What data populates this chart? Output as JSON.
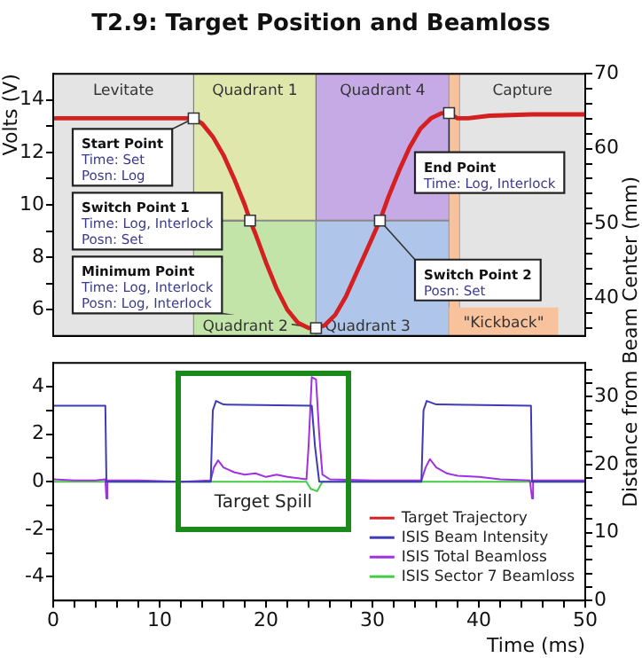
{
  "chart_data": [
    {
      "type": "line",
      "title": "T2.9: Target Position and Beamloss",
      "ylabel": "Volts (V)",
      "y2label": "Distance from Beam Center (mm)",
      "tick_labels": "y",
      "xlim": [
        0,
        50
      ],
      "ylim": [
        5,
        15
      ],
      "yticks": [
        6,
        {
          "value": 7,
          "label": null
        },
        8,
        {
          "value": 9,
          "label": null
        },
        10,
        {
          "value": 11,
          "label": null
        },
        12,
        {
          "value": 13,
          "label": null
        },
        14
      ],
      "y2lim": [
        35,
        70
      ],
      "y2ticks": [
        {
          "value": 36,
          "label": null
        },
        {
          "value": 38,
          "label": null
        },
        40,
        {
          "value": 42,
          "label": null
        },
        {
          "value": 44,
          "label": null
        },
        {
          "value": 46,
          "label": null
        },
        {
          "value": 48,
          "label": null
        },
        50,
        {
          "value": 52,
          "label": null
        },
        {
          "value": 54,
          "label": null
        },
        {
          "value": 56,
          "label": null
        },
        {
          "value": 58,
          "label": null
        },
        60,
        {
          "value": 62,
          "label": null
        },
        {
          "value": 64,
          "label": null
        },
        {
          "value": 66,
          "label": null
        },
        {
          "value": 68,
          "label": null
        },
        70
      ],
      "series": [
        {
          "name": "Target Trajectory",
          "color": "#d42020",
          "x": [
            0,
            13.2,
            14,
            15,
            16,
            17,
            18,
            18.5,
            19,
            20,
            21,
            22,
            23,
            24,
            24.7,
            25.5,
            26.5,
            27.5,
            28.5,
            29.5,
            30.7,
            31.5,
            32.5,
            33.5,
            34.5,
            35.5,
            36.5,
            37.2,
            38,
            39,
            41,
            45,
            50
          ],
          "values": [
            13.3,
            13.3,
            13.1,
            12.6,
            11.9,
            11.0,
            10.0,
            9.4,
            8.9,
            7.8,
            6.8,
            6.0,
            5.5,
            5.3,
            5.3,
            5.4,
            5.8,
            6.5,
            7.4,
            8.3,
            9.4,
            10.3,
            11.3,
            12.2,
            12.9,
            13.3,
            13.5,
            13.5,
            13.3,
            13.3,
            13.4,
            13.45,
            13.45
          ]
        }
      ],
      "ref_lines": [
        {
          "axis": "y",
          "value": 9.4,
          "color": "#888888"
        }
      ],
      "bands": [
        {
          "axis": "x",
          "from": 0,
          "to": 13.2,
          "label": "Levitate",
          "color": "#e4e4e4"
        },
        {
          "axis": "x",
          "from": 13.2,
          "to": 24.7,
          "label": "Quadrant 1",
          "color": "#dfe7ac"
        },
        {
          "axis": "x",
          "from": 13.2,
          "to": 24.7,
          "label": "Quadrant 2",
          "color": "#c3e4a8"
        },
        {
          "axis": "x",
          "from": 24.7,
          "to": 37.2,
          "label": "Quadrant 4",
          "color": "#c6aae6"
        },
        {
          "axis": "x",
          "from": 24.7,
          "to": 37.2,
          "label": "Quadrant 3",
          "color": "#afc6ea"
        },
        {
          "axis": "x",
          "from": 37.2,
          "to": 38.2,
          "label": "\"Kickback\"",
          "color": "#f8c29c"
        },
        {
          "axis": "x",
          "from": 38.2,
          "to": 50,
          "label": "Capture",
          "color": "#e4e4e4"
        }
      ],
      "annotations": [
        {
          "text": "Start Point\nTime: Set\nPosn: Log",
          "x": 13.2,
          "y": 13.3
        },
        {
          "text": "Switch Point 1\nTime: Log, Interlock\nPosn: Set",
          "x": 18.5,
          "y": 9.4
        },
        {
          "text": "Minimum Point\nTime: Log, Interlock\nPosn: Log, Interlock",
          "x": 24.7,
          "y": 5.3
        },
        {
          "text": "End Point\nTime: Log, Interlock",
          "x": 37.2,
          "y": 13.5
        },
        {
          "text": "Switch Point 2\nPosn: Set",
          "x": 30.7,
          "y": 9.4
        }
      ]
    },
    {
      "type": "line",
      "xlabel": "Time (ms)",
      "legend": "bottom right",
      "xlim": [
        0,
        50
      ],
      "xticks": [
        0,
        {
          "value": 2,
          "label": null
        },
        {
          "value": 4,
          "label": null
        },
        {
          "value": 6,
          "label": null
        },
        {
          "value": 8,
          "label": null
        },
        10,
        {
          "value": 12,
          "label": null
        },
        {
          "value": 14,
          "label": null
        },
        {
          "value": 16,
          "label": null
        },
        {
          "value": 18,
          "label": null
        },
        20,
        {
          "value": 22,
          "label": null
        },
        {
          "value": 24,
          "label": null
        },
        {
          "value": 26,
          "label": null
        },
        {
          "value": 28,
          "label": null
        },
        30,
        {
          "value": 32,
          "label": null
        },
        {
          "value": 34,
          "label": null
        },
        {
          "value": 36,
          "label": null
        },
        {
          "value": 38,
          "label": null
        },
        40,
        {
          "value": 42,
          "label": null
        },
        {
          "value": 44,
          "label": null
        },
        {
          "value": 46,
          "label": null
        },
        {
          "value": 48,
          "label": null
        },
        50
      ],
      "ylim": [
        -5,
        5
      ],
      "yticks": [
        -4,
        {
          "value": -3,
          "label": null
        },
        -2,
        {
          "value": -1,
          "label": null
        },
        0,
        {
          "value": 1,
          "label": null
        },
        2,
        {
          "value": 3,
          "label": null
        },
        4
      ],
      "y2lim": [
        0,
        35
      ],
      "y2ticks": [
        0,
        {
          "value": 2,
          "label": null
        },
        {
          "value": 4,
          "label": null
        },
        {
          "value": 6,
          "label": null
        },
        {
          "value": 8,
          "label": null
        },
        10,
        {
          "value": 12,
          "label": null
        },
        {
          "value": 14,
          "label": null
        },
        {
          "value": 16,
          "label": null
        },
        {
          "value": 18,
          "label": null
        },
        20,
        {
          "value": 22,
          "label": null
        },
        {
          "value": 24,
          "label": null
        },
        {
          "value": 26,
          "label": null
        },
        {
          "value": 28,
          "label": null
        },
        30,
        {
          "value": 32,
          "label": null
        },
        {
          "value": 34,
          "label": null
        }
      ],
      "series": [
        {
          "name": "ISIS Beam Intensity",
          "color": "#3c3cb4",
          "x": [
            0,
            4.9,
            5,
            14.8,
            15,
            15.3,
            16,
            24.3,
            24.6,
            25,
            34.6,
            34.8,
            35.1,
            36,
            44.9,
            45,
            50
          ],
          "values": [
            3.2,
            3.2,
            0,
            0,
            3.0,
            3.4,
            3.25,
            3.2,
            1.5,
            0,
            0,
            3.0,
            3.4,
            3.25,
            3.2,
            0,
            0
          ]
        },
        {
          "name": "ISIS Total Beamloss",
          "color": "#a030e0",
          "x": [
            0,
            2,
            4,
            4.9,
            5,
            5.1,
            8,
            12,
            14.8,
            15.1,
            15.5,
            16,
            17,
            18,
            19,
            20,
            21,
            22,
            23,
            23.8,
            24,
            24.3,
            24.7,
            25,
            25.3,
            26,
            30,
            34.6,
            35,
            35.4,
            36,
            37,
            38,
            40,
            42,
            44.8,
            45,
            45.1,
            50
          ],
          "values": [
            0.1,
            0.05,
            0.05,
            0.1,
            -0.7,
            0.05,
            0.05,
            0,
            0.05,
            0.6,
            0.9,
            0.6,
            0.4,
            0.3,
            0.35,
            0.2,
            0.3,
            0.2,
            0.15,
            0.1,
            1.5,
            4.4,
            4.3,
            2.0,
            0.3,
            0.1,
            0.05,
            0.05,
            0.6,
            0.95,
            0.6,
            0.35,
            0.25,
            0.2,
            0.1,
            0.05,
            -0.7,
            0.05,
            0.05
          ]
        },
        {
          "name": "ISIS Sector 7 Beamloss",
          "color": "#44cc44",
          "x": [
            0,
            23.8,
            24.2,
            24.8,
            25.3,
            50
          ],
          "values": [
            0,
            0,
            -0.3,
            -0.4,
            0,
            0
          ]
        }
      ],
      "annotations": [
        "Target Spill"
      ]
    }
  ]
}
